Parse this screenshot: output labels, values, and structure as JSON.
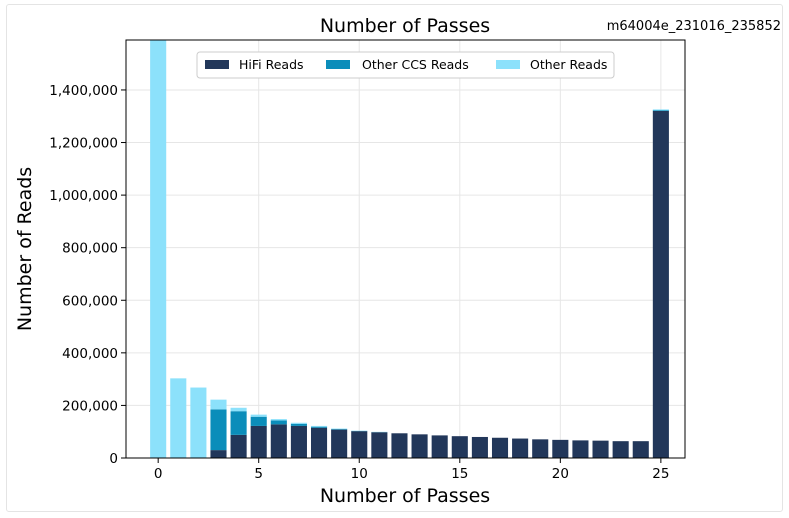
{
  "run_id": "m64004e_231016_235852",
  "chart_data": {
    "type": "bar",
    "stacked": true,
    "title": "Number of Passes",
    "xlabel": "Number of Passes",
    "ylabel": "Number of Reads",
    "xlim": [
      -1.6,
      26.2
    ],
    "ylim": [
      0,
      1590000
    ],
    "xticks": [
      0,
      5,
      10,
      15,
      20,
      25
    ],
    "yticks": [
      0,
      200000,
      400000,
      600000,
      800000,
      1000000,
      1200000,
      1400000
    ],
    "ytick_labels": [
      "0",
      "200,000",
      "400,000",
      "600,000",
      "800,000",
      "1,000,000",
      "1,200,000",
      "1,400,000"
    ],
    "grid": true,
    "legend_position": "top-center",
    "x": [
      0,
      1,
      2,
      3,
      4,
      5,
      6,
      7,
      8,
      9,
      10,
      11,
      12,
      13,
      14,
      15,
      16,
      17,
      18,
      19,
      20,
      21,
      22,
      23,
      24,
      25
    ],
    "series": [
      {
        "name": "HiFi Reads",
        "color": "#22375a",
        "values": [
          0,
          0,
          0,
          30000,
          88000,
          122000,
          128000,
          122000,
          115000,
          108000,
          102000,
          98000,
          94000,
          90000,
          86000,
          83000,
          80000,
          77000,
          74000,
          71000,
          69000,
          67000,
          66000,
          64000,
          64000,
          1320000
        ]
      },
      {
        "name": "Other CCS Reads",
        "color": "#0b8dba",
        "values": [
          0,
          0,
          0,
          155000,
          90000,
          35000,
          15000,
          8000,
          4000,
          2000,
          1000,
          500,
          0,
          0,
          0,
          0,
          0,
          0,
          0,
          0,
          0,
          0,
          0,
          0,
          0,
          3000
        ]
      },
      {
        "name": "Other Reads",
        "color": "#8ce1fb",
        "values": [
          1600000,
          303000,
          268000,
          37000,
          13000,
          8000,
          5000,
          4000,
          3000,
          2000,
          1000,
          1000,
          0,
          0,
          0,
          0,
          0,
          0,
          0,
          0,
          0,
          0,
          0,
          0,
          0,
          3000
        ]
      }
    ]
  }
}
